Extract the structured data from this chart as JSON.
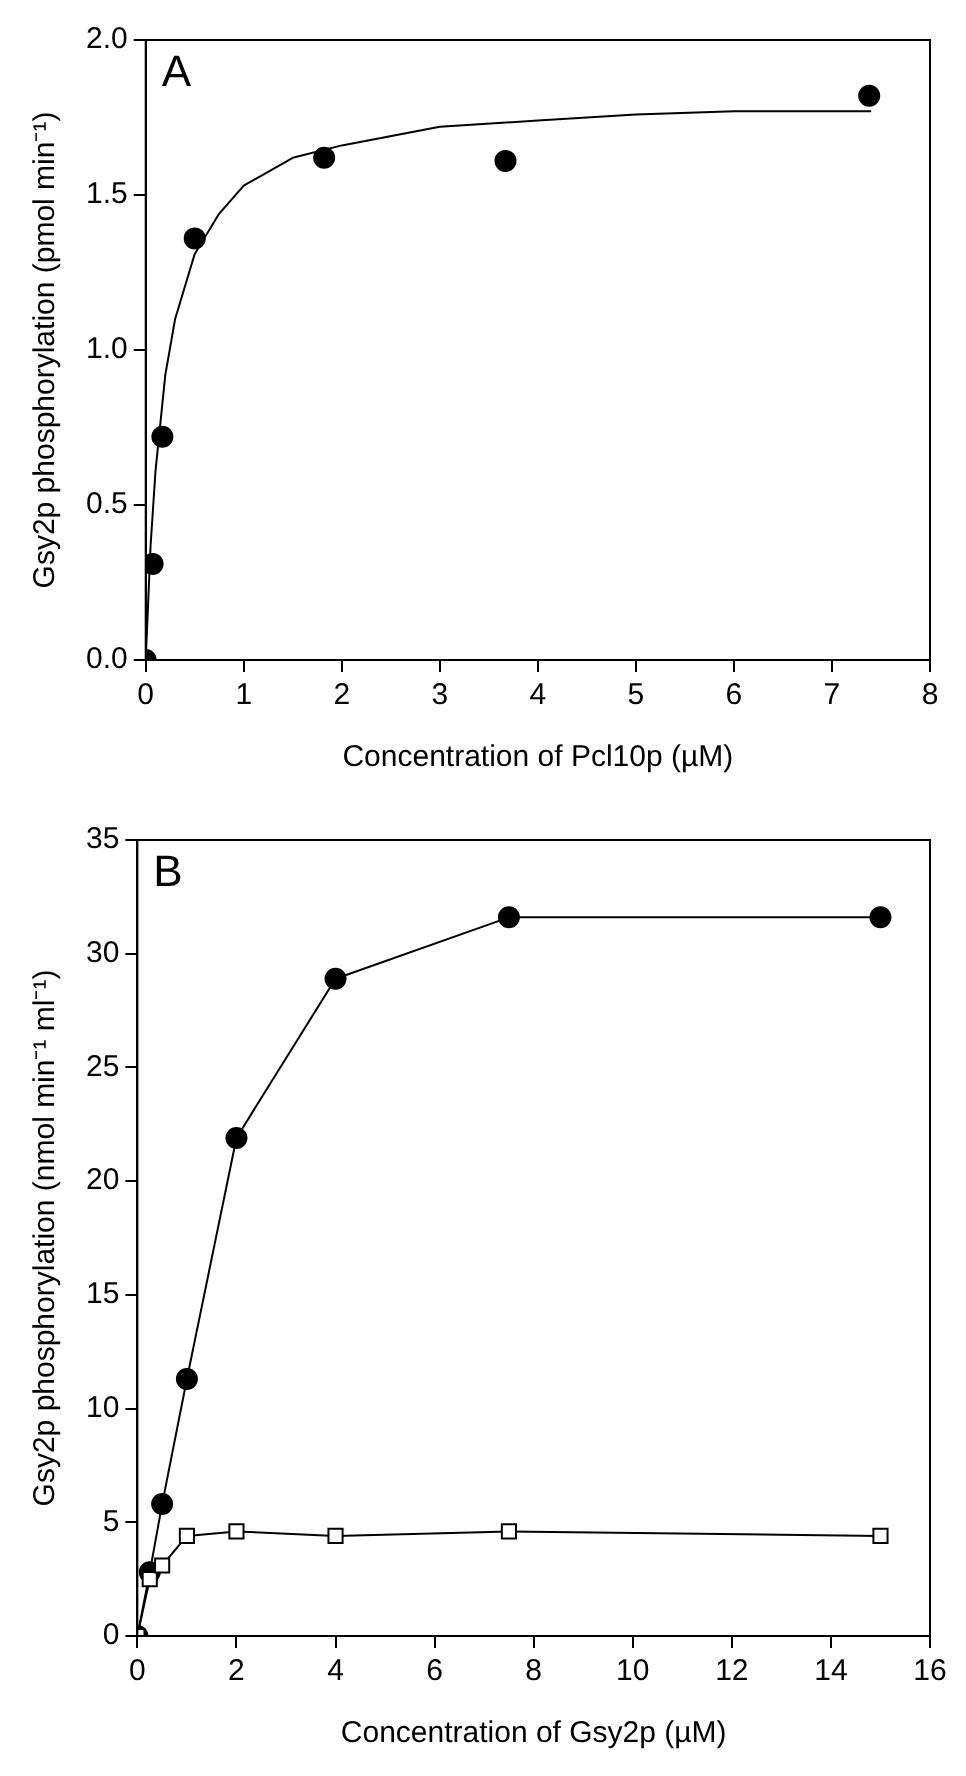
{
  "chart_data": [
    {
      "type": "scatter",
      "xlabel": "Concentration of Pcl10p (µM)",
      "ylabel": "Gsy2p phosphorylation (pmol min⁻¹)",
      "annotations": [
        "A"
      ],
      "xlim": [
        0,
        8
      ],
      "xticks": [
        0,
        1,
        2,
        3,
        4,
        5,
        6,
        7,
        8
      ],
      "ylim": [
        0,
        2
      ],
      "yticks": [
        {
          "value": 0,
          "label": "0.0"
        },
        {
          "value": 0.5,
          "label": "0.5"
        },
        {
          "value": 1,
          "label": "1.0"
        },
        {
          "value": 1.5,
          "label": "1.5"
        },
        {
          "value": 2,
          "label": "2.0"
        }
      ],
      "grid": false,
      "legend": false,
      "series": [
        {
          "marker": "circle",
          "color": "#000000",
          "x": [
            0,
            0.07,
            0.17,
            0.5,
            1.82,
            3.67,
            7.38
          ],
          "values": [
            0,
            0.31,
            0.72,
            1.36,
            1.62,
            1.61,
            1.82
          ]
        },
        {
          "type": "line",
          "marker": "none",
          "line_style": "solid",
          "color": "#000000",
          "x": [
            0,
            0.05,
            0.1,
            0.2,
            0.3,
            0.5,
            0.75,
            1,
            1.5,
            2,
            3,
            4,
            5,
            6,
            7.4
          ],
          "values": [
            0,
            0.37,
            0.61,
            0.92,
            1.1,
            1.31,
            1.44,
            1.53,
            1.62,
            1.66,
            1.72,
            1.74,
            1.76,
            1.77,
            1.77
          ]
        }
      ]
    },
    {
      "type": "line",
      "xlabel": "Concentration of Gsy2p (µM)",
      "ylabel": "Gsy2p phosphorylation (nmol min⁻¹ ml⁻¹)",
      "annotations": [
        "B"
      ],
      "xlim": [
        0,
        16
      ],
      "xticks": [
        0,
        2,
        4,
        6,
        8,
        10,
        12,
        14,
        16
      ],
      "ylim": [
        0,
        35
      ],
      "yticks": [
        0,
        5,
        10,
        15,
        20,
        25,
        30,
        35
      ],
      "grid": false,
      "legend": false,
      "series": [
        {
          "marker": "circle",
          "line_style": "solid",
          "color": "#000000",
          "x": [
            0,
            0.25,
            0.5,
            1,
            2,
            4,
            7.5,
            15
          ],
          "values": [
            0,
            2.8,
            5.8,
            11.3,
            21.9,
            28.9,
            31.6,
            31.6
          ]
        },
        {
          "marker": "square",
          "line_style": "solid",
          "color": "#000000",
          "x": [
            0,
            0.25,
            0.5,
            1,
            2,
            4,
            7.5,
            15
          ],
          "values": [
            0,
            2.5,
            3.1,
            4.4,
            4.6,
            4.4,
            4.6,
            4.4
          ]
        }
      ]
    }
  ]
}
